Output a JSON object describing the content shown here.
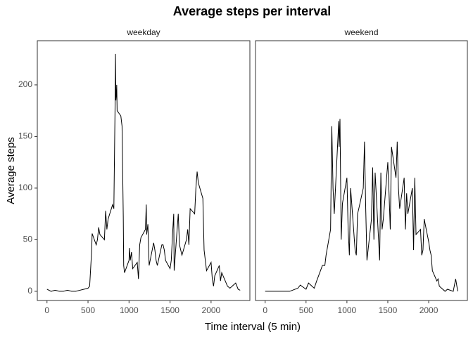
{
  "title": "Average steps per interval",
  "x_label": "Time interval (5 min)",
  "y_label": "Average steps",
  "chart_data": [
    {
      "type": "line",
      "facet": "weekday",
      "xlim": [
        -118,
        2473
      ],
      "ylim": [
        -8.9,
        242.8
      ],
      "xticks": [
        0,
        500,
        1000,
        1500,
        2000
      ],
      "yticks": [
        0,
        50,
        100,
        150,
        200
      ],
      "x": [
        0,
        50,
        100,
        150,
        200,
        250,
        300,
        350,
        400,
        450,
        500,
        520,
        545,
        550,
        600,
        615,
        630,
        645,
        700,
        715,
        730,
        745,
        800,
        815,
        830,
        835,
        840,
        845,
        850,
        855,
        900,
        915,
        930,
        935,
        945,
        1000,
        1005,
        1015,
        1030,
        1045,
        1100,
        1115,
        1130,
        1145,
        1200,
        1210,
        1215,
        1230,
        1245,
        1300,
        1315,
        1330,
        1345,
        1400,
        1415,
        1430,
        1445,
        1500,
        1515,
        1530,
        1545,
        1550,
        1600,
        1615,
        1630,
        1645,
        1700,
        1715,
        1730,
        1745,
        1800,
        1815,
        1830,
        1845,
        1900,
        1915,
        1930,
        1945,
        2000,
        2015,
        2030,
        2045,
        2100,
        2115,
        2130,
        2200,
        2230,
        2300,
        2330,
        2355
      ],
      "series": [
        {
          "color": "#000000",
          "values": [
            2,
            0,
            1,
            0,
            0,
            1,
            0,
            0,
            1,
            2,
            3,
            5,
            40,
            56,
            45,
            50,
            62,
            55,
            50,
            78,
            60,
            70,
            84,
            80,
            180,
            230,
            185,
            190,
            200,
            175,
            170,
            160,
            72,
            25,
            18,
            30,
            42,
            30,
            38,
            22,
            28,
            12,
            45,
            52,
            60,
            84,
            55,
            65,
            25,
            47,
            40,
            30,
            25,
            45,
            45,
            40,
            30,
            22,
            30,
            55,
            75,
            20,
            75,
            45,
            40,
            35,
            50,
            60,
            45,
            80,
            75,
            100,
            116,
            105,
            90,
            40,
            30,
            20,
            28,
            12,
            5,
            15,
            25,
            10,
            18,
            5,
            3,
            8,
            2,
            1
          ]
        }
      ]
    },
    {
      "type": "line",
      "facet": "weekend",
      "xlim": [
        -118,
        2473
      ],
      "ylim": [
        -8.9,
        242.8
      ],
      "xticks": [
        0,
        500,
        1000,
        1500,
        2000
      ],
      "x": [
        0,
        100,
        200,
        300,
        400,
        430,
        500,
        530,
        600,
        630,
        700,
        730,
        745,
        800,
        815,
        830,
        845,
        900,
        905,
        915,
        930,
        945,
        1000,
        1015,
        1030,
        1045,
        1100,
        1115,
        1130,
        1145,
        1200,
        1215,
        1230,
        1245,
        1300,
        1315,
        1330,
        1345,
        1400,
        1415,
        1430,
        1445,
        1500,
        1515,
        1530,
        1545,
        1600,
        1615,
        1630,
        1645,
        1700,
        1715,
        1730,
        1745,
        1800,
        1815,
        1830,
        1845,
        1900,
        1915,
        1930,
        1945,
        2000,
        2015,
        2030,
        2045,
        2100,
        2115,
        2130,
        2200,
        2230,
        2300,
        2330,
        2355
      ],
      "series": [
        {
          "color": "#000000",
          "values": [
            0,
            0,
            0,
            0,
            3,
            6,
            2,
            8,
            3,
            10,
            25,
            25,
            35,
            60,
            160,
            100,
            75,
            165,
            140,
            167,
            50,
            85,
            110,
            60,
            35,
            100,
            40,
            35,
            75,
            80,
            100,
            145,
            80,
            30,
            70,
            120,
            50,
            115,
            30,
            115,
            60,
            70,
            125,
            95,
            60,
            140,
            110,
            145,
            100,
            80,
            110,
            60,
            95,
            75,
            100,
            40,
            110,
            55,
            60,
            35,
            40,
            70,
            48,
            40,
            35,
            20,
            10,
            12,
            5,
            0,
            2,
            0,
            12,
            0
          ]
        }
      ]
    }
  ]
}
